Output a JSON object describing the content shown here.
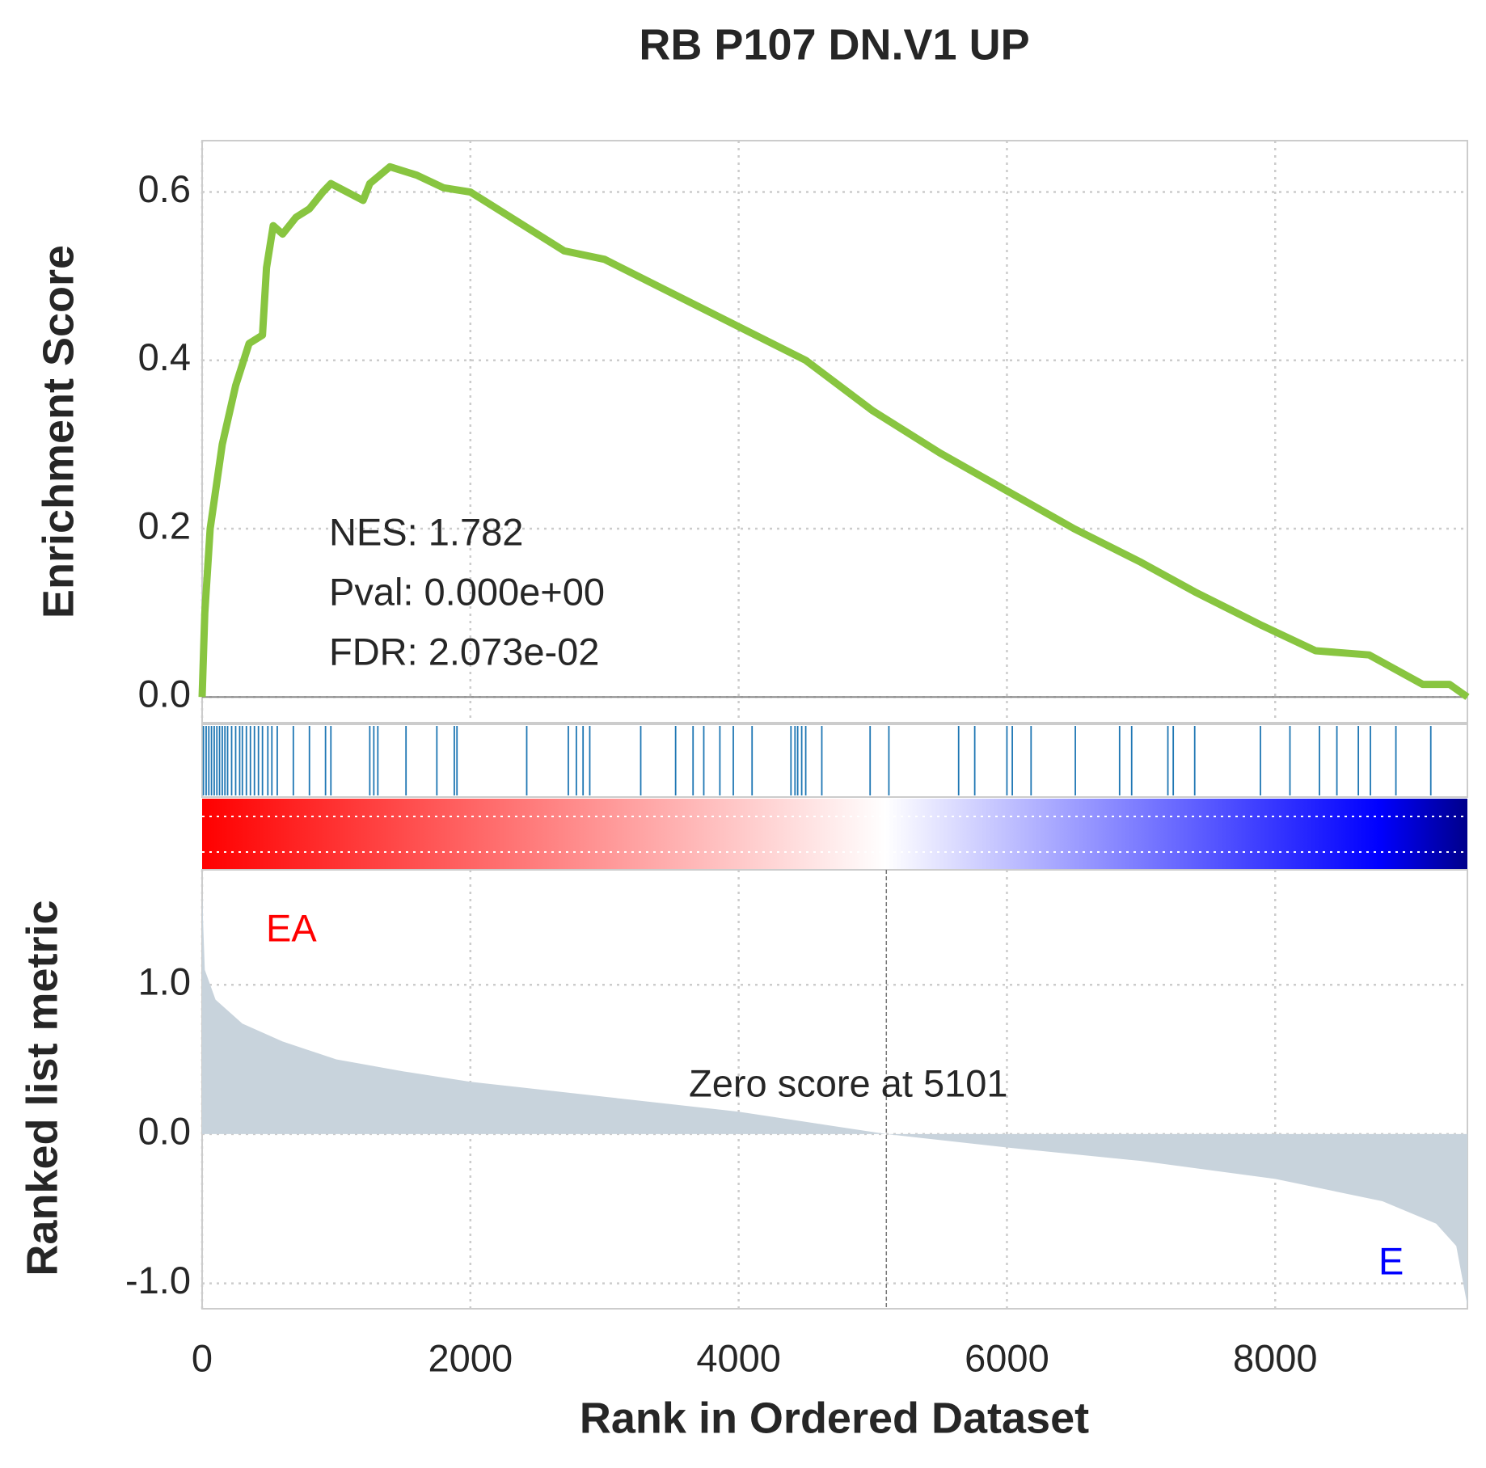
{
  "chart_data": [
    {
      "type": "line",
      "title": "RB P107 DN.V1 UP",
      "ylabel": "Enrichment Score",
      "annotations": [
        "NES: 1.782",
        "Pval: 0.000e+00",
        "FDR: 2.073e-02"
      ],
      "xlim": [
        0,
        9433
      ],
      "xticks": [
        0,
        2000,
        4000,
        6000,
        8000
      ],
      "ylim": [
        -0.0305,
        0.661
      ],
      "yticks": [
        {
          "value": 0,
          "label": "0.0"
        },
        0.2,
        0.4,
        0.6
      ],
      "grid": true,
      "series": [
        {
          "color": "#88c540",
          "x": [
            0,
            20,
            60,
            150,
            250,
            350,
            450,
            480,
            530,
            600,
            700,
            800,
            900,
            960,
            1200,
            1250,
            1400,
            1600,
            1800,
            2000,
            2400,
            2700,
            3000,
            3500,
            4000,
            4500,
            5000,
            5500,
            6000,
            6500,
            7000,
            7400,
            7900,
            8300,
            8700,
            9100,
            9300,
            9433
          ],
          "values": [
            0,
            0.1,
            0.2,
            0.3,
            0.37,
            0.42,
            0.43,
            0.51,
            0.56,
            0.55,
            0.57,
            0.58,
            0.6,
            0.61,
            0.59,
            0.61,
            0.63,
            0.62,
            0.605,
            0.6,
            0.56,
            0.53,
            0.52,
            0.48,
            0.44,
            0.4,
            0.34,
            0.29,
            0.245,
            0.2,
            0.16,
            0.125,
            0.085,
            0.055,
            0.05,
            0.015,
            0.015,
            0
          ]
        }
      ],
      "hits": {
        "color": "#1f77b4",
        "x": [
          10,
          30,
          50,
          70,
          90,
          110,
          130,
          150,
          170,
          190,
          220,
          250,
          280,
          300,
          330,
          360,
          390,
          420,
          450,
          490,
          520,
          560,
          680,
          800,
          920,
          960,
          1250,
          1280,
          1310,
          1520,
          1750,
          1880,
          1900,
          2420,
          2730,
          2790,
          2840,
          2890,
          3270,
          3530,
          3660,
          3740,
          3860,
          3960,
          4100,
          4390,
          4420,
          4440,
          4470,
          4500,
          4620,
          4980,
          5120,
          5640,
          5760,
          6000,
          6040,
          6180,
          6510,
          6840,
          6930,
          7200,
          7240,
          7400,
          7890,
          8110,
          8330,
          8460,
          8620,
          8710,
          8900,
          9160
        ]
      }
    },
    {
      "type": "area",
      "ylabel": "Ranked list metric",
      "xlabel": "Rank in Ordered Dataset",
      "xlim": [
        0,
        9433
      ],
      "xticks": [
        0,
        2000,
        4000,
        6000,
        8000
      ],
      "ylim": [
        -1.17,
        1.77
      ],
      "yticks": [
        {
          "value": -1,
          "label": "-1.0"
        },
        {
          "value": 0,
          "label": "0.0"
        },
        {
          "value": 1,
          "label": "1.0"
        }
      ],
      "grid": true,
      "series": [
        {
          "color": "#c8d3dc",
          "x": [
            0,
            20,
            100,
            300,
            600,
            1000,
            1500,
            2000,
            3000,
            4000,
            5101,
            6000,
            7000,
            8000,
            8800,
            9200,
            9350,
            9433
          ],
          "values": [
            1.6,
            1.1,
            0.9,
            0.74,
            0.62,
            0.5,
            0.42,
            0.35,
            0.25,
            0.15,
            0,
            -0.09,
            -0.18,
            -0.3,
            -0.45,
            -0.6,
            -0.75,
            -1.15
          ]
        }
      ],
      "zero_rank": 5101,
      "zero_label": "Zero score at 5101",
      "pos_label": "EA",
      "pos_color": "#ff0000",
      "neg_label": "E",
      "neg_color": "#0000ff"
    }
  ]
}
